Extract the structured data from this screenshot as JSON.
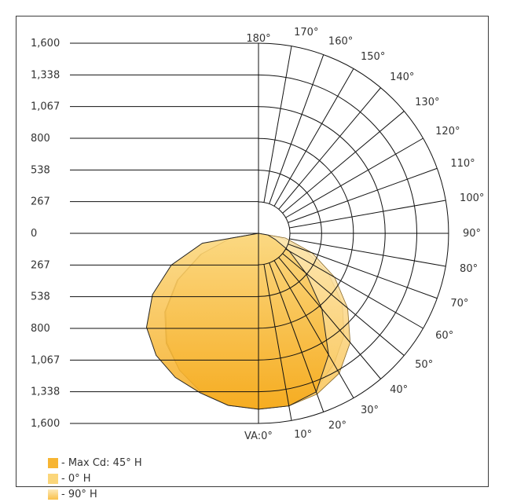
{
  "chart_data": {
    "type": "polar",
    "title": "",
    "radial_ticks": [
      "1,600",
      "1,338",
      "1,067",
      "800",
      "538",
      "267",
      "0",
      "267",
      "538",
      "800",
      "1,067",
      "1,338",
      "1,600"
    ],
    "angle_labels": [
      "VA:0°",
      "10°",
      "20°",
      "30°",
      "40°",
      "50°",
      "60°",
      "70°",
      "80°",
      "90°",
      "100°",
      "110°",
      "120°",
      "130°",
      "140°",
      "150°",
      "160°",
      "170°",
      "180°"
    ],
    "angles_deg": [
      0,
      10,
      20,
      30,
      40,
      50,
      60,
      70,
      80,
      90,
      100,
      110,
      120,
      130,
      140,
      150,
      160,
      170,
      180
    ],
    "rmax": 1600,
    "series": [
      {
        "name": "- Max Cd: 45° H",
        "color": "#f7b533",
        "angles": [
          0,
          10,
          20,
          30,
          40,
          50,
          60,
          70,
          80,
          90
        ],
        "right": [
          1480,
          1475,
          1420,
          1180,
          830,
          520,
          300,
          150,
          80,
          0
        ],
        "left": [
          1480,
          1470,
          1430,
          1400,
          1340,
          1230,
          1030,
          780,
          480,
          0
        ]
      },
      {
        "name": "- 0° H",
        "color": "#fbd67a",
        "angles": [
          0,
          10,
          20,
          30,
          40,
          50,
          60,
          70,
          80,
          90
        ],
        "right": [
          1480,
          1475,
          1400,
          1270,
          1120,
          920,
          680,
          420,
          180,
          0
        ],
        "left": [
          1480,
          1470,
          1420,
          1330,
          1210,
          1030,
          790,
          520,
          240,
          0
        ]
      },
      {
        "name": "- 90° H",
        "color": "#fde3a4",
        "angles": [
          0,
          10,
          20,
          30,
          40,
          50,
          60,
          70,
          80,
          90
        ],
        "right": [
          1480,
          1475,
          1440,
          1360,
          1200,
          980,
          740,
          480,
          230,
          0
        ],
        "left": [
          1480,
          1470,
          1420,
          1330,
          1200,
          1020,
          780,
          510,
          240,
          0
        ]
      }
    ]
  }
}
